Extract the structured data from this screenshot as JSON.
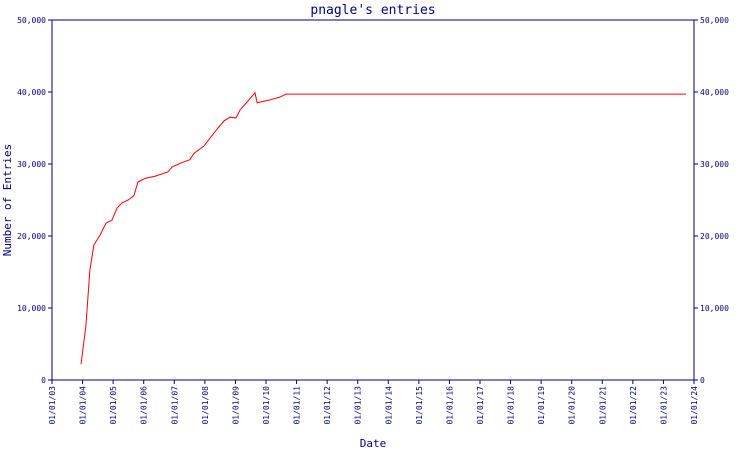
{
  "chart_data": {
    "type": "line",
    "title": "pnagle's entries",
    "xlabel": "Date",
    "ylabel": "Number of Entries",
    "x": [
      2003.95,
      2004.11,
      2004.24,
      2004.37,
      2004.57,
      2004.77,
      2004.96,
      2005.13,
      2005.29,
      2005.49,
      2005.68,
      2005.81,
      2006.04,
      2006.37,
      2006.79,
      2006.93,
      2007.19,
      2007.51,
      2007.65,
      2007.97,
      2008.17,
      2008.43,
      2008.63,
      2008.82,
      2009.02,
      2009.15,
      2009.41,
      2009.64,
      2009.71,
      2010.13,
      2010.46,
      2010.65,
      2023.74
    ],
    "series": [
      {
        "color": "#ff0000",
        "values": [
          2200,
          7600,
          15300,
          18750,
          20100,
          21800,
          22200,
          23900,
          24600,
          25000,
          25600,
          27500,
          28000,
          28300,
          28900,
          29600,
          30100,
          30600,
          31500,
          32500,
          33600,
          35000,
          36000,
          36500,
          36400,
          37500,
          38750,
          39900,
          38500,
          38900,
          39300,
          39700,
          39700
        ]
      }
    ],
    "xlim": [
      2003,
      2024
    ],
    "xticks": [
      {
        "value": 2003,
        "label": "01/01/03"
      },
      {
        "value": 2004,
        "label": "01/01/04"
      },
      {
        "value": 2005,
        "label": "01/01/05"
      },
      {
        "value": 2006,
        "label": "01/01/06"
      },
      {
        "value": 2007,
        "label": "01/01/07"
      },
      {
        "value": 2008,
        "label": "01/01/08"
      },
      {
        "value": 2009,
        "label": "01/01/09"
      },
      {
        "value": 2010,
        "label": "01/01/10"
      },
      {
        "value": 2011,
        "label": "01/01/11"
      },
      {
        "value": 2012,
        "label": "01/01/12"
      },
      {
        "value": 2013,
        "label": "01/01/13"
      },
      {
        "value": 2014,
        "label": "01/01/14"
      },
      {
        "value": 2015,
        "label": "01/01/15"
      },
      {
        "value": 2016,
        "label": "01/01/16"
      },
      {
        "value": 2017,
        "label": "01/01/17"
      },
      {
        "value": 2018,
        "label": "01/01/18"
      },
      {
        "value": 2019,
        "label": "01/01/19"
      },
      {
        "value": 2020,
        "label": "01/01/20"
      },
      {
        "value": 2021,
        "label": "01/01/21"
      },
      {
        "value": 2022,
        "label": "01/01/22"
      },
      {
        "value": 2023,
        "label": "01/01/23"
      },
      {
        "value": 2024,
        "label": "01/01/24"
      }
    ],
    "ylim": [
      0,
      50000
    ],
    "yticks": [
      0,
      {
        "value": 10000,
        "label": "10,000"
      },
      {
        "value": 20000,
        "label": "20,000"
      },
      {
        "value": 30000,
        "label": "30,000"
      },
      {
        "value": 40000,
        "label": "40,000"
      },
      {
        "value": 50000,
        "label": "50,000"
      }
    ],
    "y2lim": [
      0,
      50000
    ],
    "y2ticks": [
      0,
      {
        "value": 10000,
        "label": "10,000"
      },
      {
        "value": 20000,
        "label": "20,000"
      },
      {
        "value": 30000,
        "label": "30,000"
      },
      {
        "value": 40000,
        "label": "40,000"
      },
      {
        "value": 50000,
        "label": "50,000"
      }
    ],
    "axis_color": "#000080"
  }
}
